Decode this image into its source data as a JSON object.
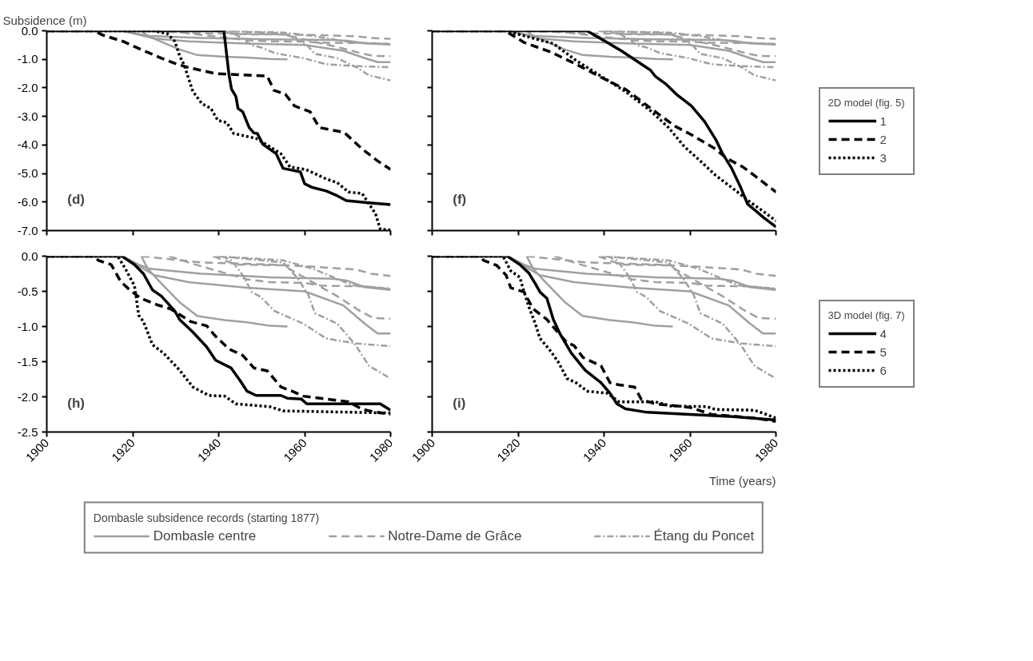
{
  "chart_data": [
    {
      "type": "line",
      "ylabel": "Subsidence (m)",
      "annotations": [
        "(d)"
      ],
      "xlim": [
        1900,
        1980
      ],
      "xticks": [
        1900,
        1920,
        1940,
        1960,
        1980
      ],
      "ylim": [
        -7,
        0
      ],
      "yticks": [
        {
          "value": 0,
          "label": "0.0"
        },
        {
          "value": -1,
          "label": "-1.0"
        },
        {
          "value": -2,
          "label": "-2.0"
        },
        {
          "value": -3,
          "label": "-3.0"
        },
        {
          "value": -4,
          "label": "-4.0"
        },
        {
          "value": -5,
          "label": "-5.0"
        },
        {
          "value": -6,
          "label": "-6.0"
        },
        {
          "value": -7,
          "label": "-7.0"
        }
      ],
      "tick_labels": "y",
      "series": [
        {
          "color": "#a0a0a0",
          "line_style": "solid",
          "x": [
            1922,
            1923.5,
            1926.7,
            1931,
            1935,
            1941.4,
            1946.6,
            1951.9,
            1956
          ],
          "values": [
            0,
            -0.18,
            -0.39,
            -0.66,
            -0.85,
            -0.91,
            -0.94,
            -0.99,
            -1.0
          ]
        },
        {
          "color": "#a0a0a0",
          "line_style": "solid",
          "x": [
            1917.5,
            1921.4,
            1924,
            1936,
            1952,
            1966.6,
            1970,
            1974,
            1980
          ],
          "values": [
            0,
            -0.12,
            -0.18,
            -0.25,
            -0.3,
            -0.32,
            -0.35,
            -0.44,
            -0.48
          ]
        },
        {
          "color": "#a0a0a0",
          "line_style": "solid",
          "x": [
            1917.5,
            1922,
            1925,
            1933,
            1946.6,
            1960,
            1969,
            1974,
            1977,
            1980
          ],
          "values": [
            0,
            -0.16,
            -0.27,
            -0.37,
            -0.45,
            -0.5,
            -0.7,
            -0.96,
            -1.1,
            -1.1
          ]
        },
        {
          "color": "#a0a0a0",
          "line_style": "dashed",
          "x": [
            1922,
            1936,
            1952,
            1962,
            1972,
            1975.5,
            1980
          ],
          "values": [
            0,
            -0.09,
            -0.12,
            -0.15,
            -0.19,
            -0.25,
            -0.28
          ]
        },
        {
          "color": "#a0a0a0",
          "line_style": "dashed",
          "x": [
            1928.5,
            1933.5,
            1941.4,
            1946.6,
            1952,
            1960,
            1964,
            1974,
            1980
          ],
          "values": [
            0,
            -0.1,
            -0.24,
            -0.33,
            -0.37,
            -0.38,
            -0.42,
            -0.43,
            -0.47
          ]
        },
        {
          "color": "#a0a0a0",
          "line_style": "dashed",
          "x": [
            1938.7,
            1944,
            1955,
            1962.4,
            1967.6,
            1972.9,
            1976,
            1980
          ],
          "values": [
            0,
            -0.12,
            -0.13,
            -0.39,
            -0.57,
            -0.78,
            -0.88,
            -0.89
          ]
        },
        {
          "color": "#a0a0a0",
          "line_style": "dashdot",
          "x": [
            1940.8,
            1943,
            1945.6,
            1947.7,
            1949.8,
            1953,
            1959.7,
            1965,
            1971.8,
            1980
          ],
          "values": [
            0,
            -0.06,
            -0.27,
            -0.51,
            -0.58,
            -0.78,
            -0.96,
            -1.17,
            -1.24,
            -1.28
          ]
        },
        {
          "color": "#a0a0a0",
          "line_style": "dashdot",
          "x": [
            1940.3,
            1955,
            1958.2,
            1960.8,
            1962.4,
            1967.6,
            1971.8,
            1975,
            1980
          ],
          "values": [
            0,
            -0.09,
            -0.3,
            -0.54,
            -0.81,
            -0.96,
            -1.26,
            -1.56,
            -1.74
          ]
        },
        {
          "color": "#a0a0a0",
          "line_style": "dashdot",
          "x": [
            1939.5,
            1955,
            1962,
            1969,
            1971.8,
            1980
          ],
          "values": [
            0,
            -0.06,
            -0.18,
            -0.36,
            -0.42,
            -0.46
          ]
        },
        {
          "color": "#000000",
          "line_style": "solid",
          "x": [
            1900,
            1941.2,
            1941.5,
            1942.4,
            1943,
            1944,
            1944.5,
            1945.6,
            1947.1,
            1948.2,
            1949,
            1950.3,
            1951.3,
            1953.4,
            1955,
            1959,
            1960,
            1961.8,
            1965,
            1967.6,
            1969.7,
            1975,
            1980
          ],
          "values": [
            0,
            0,
            -0.37,
            -1.54,
            -2.05,
            -2.3,
            -2.72,
            -2.84,
            -3.39,
            -3.58,
            -3.6,
            -3.98,
            -4.08,
            -4.31,
            -4.82,
            -4.94,
            -5.36,
            -5.49,
            -5.61,
            -5.78,
            -5.95,
            -6.03,
            -6.09
          ]
        },
        {
          "color": "#000000",
          "line_style": "dashed",
          "x": [
            1900,
            1911,
            1913,
            1917.7,
            1921.4,
            1926.7,
            1930.3,
            1933,
            1939.3,
            1951.3,
            1952.9,
            1955.5,
            1957.6,
            1961.3,
            1963.4,
            1969.2,
            1973.4,
            1977,
            1980
          ],
          "values": [
            0,
            0,
            -0.15,
            -0.37,
            -0.62,
            -0.96,
            -1.17,
            -1.29,
            -1.5,
            -1.59,
            -2.09,
            -2.22,
            -2.63,
            -2.84,
            -3.39,
            -3.56,
            -4.14,
            -4.56,
            -4.86
          ]
        },
        {
          "color": "#000000",
          "line_style": "dotted",
          "x": [
            1900,
            1925,
            1928,
            1929.8,
            1930.9,
            1932,
            1934,
            1936.1,
            1938.2,
            1939.8,
            1941.9,
            1943.5,
            1948.7,
            1951.9,
            1954.5,
            1956.6,
            1960.3,
            1965,
            1967.6,
            1970.2,
            1973.4,
            1975,
            1976.5,
            1977.6,
            1980
          ],
          "values": [
            0,
            0,
            -0.1,
            -0.37,
            -0.87,
            -1.21,
            -2.13,
            -2.55,
            -2.72,
            -3.14,
            -3.22,
            -3.6,
            -3.77,
            -4.06,
            -4.31,
            -4.77,
            -4.86,
            -5.19,
            -5.32,
            -5.65,
            -5.7,
            -6.07,
            -6.41,
            -6.95,
            -6.98
          ]
        }
      ]
    },
    {
      "type": "line",
      "annotations": [
        "(f)"
      ],
      "legend": "right",
      "legend_title": "2D model (fig. 5)",
      "xlim": [
        1900,
        1980
      ],
      "xticks": [
        1900,
        1920,
        1940,
        1960,
        1980
      ],
      "ylim": [
        -7,
        0
      ],
      "yticks": [
        0,
        -1,
        -2,
        -3,
        -4,
        -5,
        -6,
        -7
      ],
      "tick_labels": false,
      "series": [
        {
          "color": "#a0a0a0",
          "line_style": "solid",
          "x": [
            1922,
            1923.5,
            1926.7,
            1931,
            1935,
            1941.4,
            1946.6,
            1951.9,
            1956
          ],
          "values": [
            0,
            -0.18,
            -0.39,
            -0.66,
            -0.85,
            -0.91,
            -0.94,
            -0.99,
            -1.0
          ]
        },
        {
          "color": "#a0a0a0",
          "line_style": "solid",
          "x": [
            1917.5,
            1921.4,
            1924,
            1936,
            1952,
            1966.6,
            1970,
            1974,
            1980
          ],
          "values": [
            0,
            -0.12,
            -0.18,
            -0.25,
            -0.3,
            -0.32,
            -0.35,
            -0.44,
            -0.48
          ]
        },
        {
          "color": "#a0a0a0",
          "line_style": "solid",
          "x": [
            1917.5,
            1922,
            1925,
            1933,
            1946.6,
            1960,
            1969,
            1974,
            1977,
            1980
          ],
          "values": [
            0,
            -0.16,
            -0.27,
            -0.37,
            -0.45,
            -0.5,
            -0.7,
            -0.96,
            -1.1,
            -1.1
          ]
        },
        {
          "color": "#a0a0a0",
          "line_style": "dashed",
          "x": [
            1922,
            1936,
            1952,
            1962,
            1972,
            1975.5,
            1980
          ],
          "values": [
            0,
            -0.09,
            -0.12,
            -0.15,
            -0.19,
            -0.25,
            -0.28
          ]
        },
        {
          "color": "#a0a0a0",
          "line_style": "dashed",
          "x": [
            1928.5,
            1933.5,
            1941.4,
            1946.6,
            1952,
            1960,
            1964,
            1974,
            1980
          ],
          "values": [
            0,
            -0.1,
            -0.24,
            -0.33,
            -0.37,
            -0.38,
            -0.42,
            -0.43,
            -0.47
          ]
        },
        {
          "color": "#a0a0a0",
          "line_style": "dashed",
          "x": [
            1938.7,
            1944,
            1955,
            1962.4,
            1967.6,
            1972.9,
            1976,
            1980
          ],
          "values": [
            0,
            -0.12,
            -0.13,
            -0.39,
            -0.57,
            -0.78,
            -0.88,
            -0.89
          ]
        },
        {
          "color": "#a0a0a0",
          "line_style": "dashdot",
          "x": [
            1940.8,
            1943,
            1945.6,
            1947.7,
            1949.8,
            1953,
            1959.7,
            1965,
            1971.8,
            1980
          ],
          "values": [
            0,
            -0.06,
            -0.27,
            -0.51,
            -0.58,
            -0.78,
            -0.96,
            -1.17,
            -1.24,
            -1.28
          ]
        },
        {
          "color": "#a0a0a0",
          "line_style": "dashdot",
          "x": [
            1940.3,
            1955,
            1958.2,
            1960.8,
            1962.4,
            1967.6,
            1971.8,
            1975,
            1980
          ],
          "values": [
            0,
            -0.09,
            -0.3,
            -0.54,
            -0.81,
            -0.96,
            -1.26,
            -1.56,
            -1.74
          ]
        },
        {
          "color": "#a0a0a0",
          "line_style": "dashdot",
          "x": [
            1939.5,
            1955,
            1962,
            1969,
            1971.8,
            1980
          ],
          "values": [
            0,
            -0.06,
            -0.18,
            -0.36,
            -0.42,
            -0.46
          ]
        },
        {
          "name": "1",
          "color": "#000000",
          "line_style": "solid",
          "x": [
            1900,
            1936,
            1940.3,
            1944,
            1948.2,
            1950.8,
            1951.9,
            1954.5,
            1957.1,
            1960.3,
            1963.4,
            1966,
            1967.6,
            1969.7,
            1971.8,
            1973.4,
            1975.5,
            1977.1,
            1980
          ],
          "values": [
            0,
            0,
            -0.37,
            -0.7,
            -1.12,
            -1.38,
            -1.59,
            -1.88,
            -2.26,
            -2.63,
            -3.18,
            -3.81,
            -4.31,
            -4.82,
            -5.49,
            -6.07,
            -6.33,
            -6.54,
            -6.87
          ]
        },
        {
          "name": "2",
          "color": "#000000",
          "line_style": "dashed",
          "x": [
            1900,
            1917,
            1921.4,
            1927.7,
            1933.5,
            1939.3,
            1945,
            1948.7,
            1952.4,
            1956.6,
            1960.3,
            1965.5,
            1968.7,
            1972.3,
            1975,
            1980
          ],
          "values": [
            0,
            0,
            -0.41,
            -0.75,
            -1.17,
            -1.63,
            -2.05,
            -2.47,
            -2.89,
            -3.35,
            -3.64,
            -4.1,
            -4.48,
            -4.77,
            -5.07,
            -5.65
          ]
        },
        {
          "name": "3",
          "color": "#000000",
          "line_style": "dotted",
          "x": [
            1900,
            1917,
            1928.2,
            1933.5,
            1939.3,
            1945,
            1950.8,
            1955,
            1958.7,
            1962.4,
            1966,
            1969.7,
            1973.9,
            1977.1,
            1980
          ],
          "values": [
            0,
            0,
            -0.45,
            -1.04,
            -1.59,
            -2.13,
            -2.8,
            -3.39,
            -4.06,
            -4.56,
            -5.07,
            -5.49,
            -5.99,
            -6.33,
            -6.66
          ]
        }
      ]
    },
    {
      "type": "line",
      "annotations": [
        "(h)"
      ],
      "legend": "bottom",
      "legend_title": "Dombasle subsidence records (starting 1877)",
      "xlim": [
        1900,
        1980
      ],
      "xticks": [
        1900,
        1920,
        1940,
        1960,
        1980
      ],
      "ylim": [
        -2.5,
        0
      ],
      "yticks": [
        {
          "value": 0,
          "label": "0.0"
        },
        -0.5,
        {
          "value": -1,
          "label": "-1.0"
        },
        -1.5,
        {
          "value": -2,
          "label": "-2.0"
        },
        -2.5
      ],
      "series": [
        {
          "name": "Dombasle centre",
          "color": "#a0a0a0",
          "line_style": "solid",
          "x": [
            1922,
            1923.5,
            1926.7,
            1931,
            1935,
            1941.4,
            1946.6,
            1951.9,
            1956
          ],
          "values": [
            0,
            -0.18,
            -0.39,
            -0.66,
            -0.85,
            -0.91,
            -0.94,
            -0.99,
            -1.0
          ]
        },
        {
          "color": "#a0a0a0",
          "line_style": "solid",
          "x": [
            1917.5,
            1921.4,
            1924,
            1936,
            1952,
            1966.6,
            1970,
            1974,
            1980
          ],
          "values": [
            0,
            -0.12,
            -0.18,
            -0.25,
            -0.3,
            -0.32,
            -0.35,
            -0.44,
            -0.48
          ]
        },
        {
          "color": "#a0a0a0",
          "line_style": "solid",
          "x": [
            1917.5,
            1922,
            1925,
            1933,
            1946.6,
            1960,
            1969,
            1974,
            1977,
            1980
          ],
          "values": [
            0,
            -0.16,
            -0.27,
            -0.37,
            -0.45,
            -0.5,
            -0.7,
            -0.96,
            -1.1,
            -1.1
          ]
        },
        {
          "name": "Notre-Dame de Grâce",
          "color": "#a0a0a0",
          "line_style": "dashed",
          "x": [
            1922,
            1936,
            1952,
            1962,
            1972,
            1975.5,
            1980
          ],
          "values": [
            0,
            -0.09,
            -0.12,
            -0.15,
            -0.19,
            -0.25,
            -0.28
          ]
        },
        {
          "color": "#a0a0a0",
          "line_style": "dashed",
          "x": [
            1928.5,
            1933.5,
            1941.4,
            1946.6,
            1952,
            1960,
            1964,
            1974,
            1980
          ],
          "values": [
            0,
            -0.1,
            -0.24,
            -0.33,
            -0.37,
            -0.38,
            -0.42,
            -0.43,
            -0.47
          ]
        },
        {
          "color": "#a0a0a0",
          "line_style": "dashed",
          "x": [
            1938.7,
            1944,
            1955,
            1962.4,
            1967.6,
            1972.9,
            1976,
            1980
          ],
          "values": [
            0,
            -0.12,
            -0.13,
            -0.39,
            -0.57,
            -0.78,
            -0.88,
            -0.89
          ]
        },
        {
          "name": "Étang du Poncet",
          "color": "#a0a0a0",
          "line_style": "dashdot",
          "x": [
            1940.8,
            1943,
            1945.6,
            1947.7,
            1949.8,
            1953,
            1959.7,
            1965,
            1971.8,
            1980
          ],
          "values": [
            0,
            -0.06,
            -0.27,
            -0.51,
            -0.58,
            -0.78,
            -0.96,
            -1.17,
            -1.24,
            -1.28
          ]
        },
        {
          "color": "#a0a0a0",
          "line_style": "dashdot",
          "x": [
            1940.3,
            1955,
            1958.2,
            1960.8,
            1962.4,
            1967.6,
            1971.8,
            1975,
            1980
          ],
          "values": [
            0,
            -0.09,
            -0.3,
            -0.54,
            -0.81,
            -0.96,
            -1.26,
            -1.56,
            -1.74
          ]
        },
        {
          "color": "#a0a0a0",
          "line_style": "dashdot",
          "x": [
            1939.5,
            1955,
            1962,
            1969,
            1971.8,
            1980
          ],
          "values": [
            0,
            -0.06,
            -0.18,
            -0.36,
            -0.42,
            -0.46
          ]
        },
        {
          "color": "#000000",
          "line_style": "solid",
          "x": [
            1900,
            1917.5,
            1920.4,
            1922.5,
            1924.6,
            1926.7,
            1929.8,
            1930.9,
            1934,
            1937.2,
            1939.3,
            1942.9,
            1945,
            1946.6,
            1948.7,
            1954.5,
            1956,
            1959.2,
            1960.5,
            1977.6,
            1980
          ],
          "values": [
            0,
            0,
            -0.12,
            -0.25,
            -0.48,
            -0.57,
            -0.78,
            -0.9,
            -1.08,
            -1.29,
            -1.48,
            -1.59,
            -1.77,
            -1.92,
            -1.98,
            -1.98,
            -2.02,
            -2.03,
            -2.1,
            -2.1,
            -2.19
          ]
        },
        {
          "color": "#000000",
          "line_style": "dashed",
          "x": [
            1900,
            1911,
            1912,
            1915,
            1917.2,
            1919.3,
            1921.9,
            1925.6,
            1928.8,
            1933.5,
            1937.2,
            1939.3,
            1942.4,
            1945.6,
            1948.2,
            1951.3,
            1954.5,
            1957.1,
            1959.7,
            1970.2,
            1972.9,
            1975,
            1980
          ],
          "values": [
            0,
            0,
            -0.06,
            -0.12,
            -0.36,
            -0.48,
            -0.6,
            -0.69,
            -0.75,
            -0.93,
            -0.99,
            -1.14,
            -1.32,
            -1.41,
            -1.59,
            -1.63,
            -1.86,
            -1.92,
            -1.99,
            -2.07,
            -2.16,
            -2.2,
            -2.25
          ]
        },
        {
          "color": "#000000",
          "line_style": "dotted",
          "x": [
            1900,
            1916.5,
            1918.3,
            1920.4,
            1921.4,
            1922.5,
            1924.6,
            1927.2,
            1930.9,
            1934,
            1937.7,
            1941.4,
            1944,
            1951.9,
            1955,
            1980
          ],
          "values": [
            0,
            0,
            -0.18,
            -0.42,
            -0.84,
            -0.93,
            -1.26,
            -1.38,
            -1.62,
            -1.86,
            -1.98,
            -1.99,
            -2.1,
            -2.14,
            -2.2,
            -2.23
          ]
        }
      ]
    },
    {
      "type": "line",
      "annotations": [
        "(i)"
      ],
      "xlabel": "Time (years)",
      "legend": "right",
      "legend_title": "3D model (fig. 7)",
      "xlim": [
        1900,
        1980
      ],
      "xticks": [
        1900,
        1920,
        1940,
        1960,
        1980
      ],
      "ylim": [
        -2.5,
        0
      ],
      "yticks": [
        0,
        -0.5,
        -1,
        -1.5,
        -2,
        -2.5
      ],
      "tick_labels": "x",
      "series": [
        {
          "color": "#a0a0a0",
          "line_style": "solid",
          "x": [
            1922,
            1923.5,
            1926.7,
            1931,
            1935,
            1941.4,
            1946.6,
            1951.9,
            1956
          ],
          "values": [
            0,
            -0.18,
            -0.39,
            -0.66,
            -0.85,
            -0.91,
            -0.94,
            -0.99,
            -1.0
          ]
        },
        {
          "color": "#a0a0a0",
          "line_style": "solid",
          "x": [
            1917.5,
            1921.4,
            1924,
            1936,
            1952,
            1966.6,
            1970,
            1974,
            1980
          ],
          "values": [
            0,
            -0.12,
            -0.18,
            -0.25,
            -0.3,
            -0.32,
            -0.35,
            -0.44,
            -0.48
          ]
        },
        {
          "color": "#a0a0a0",
          "line_style": "solid",
          "x": [
            1917.5,
            1922,
            1925,
            1933,
            1946.6,
            1960,
            1969,
            1974,
            1977,
            1980
          ],
          "values": [
            0,
            -0.16,
            -0.27,
            -0.37,
            -0.45,
            -0.5,
            -0.7,
            -0.96,
            -1.1,
            -1.1
          ]
        },
        {
          "color": "#a0a0a0",
          "line_style": "dashed",
          "x": [
            1922,
            1936,
            1952,
            1962,
            1972,
            1975.5,
            1980
          ],
          "values": [
            0,
            -0.09,
            -0.12,
            -0.15,
            -0.19,
            -0.25,
            -0.28
          ]
        },
        {
          "color": "#a0a0a0",
          "line_style": "dashed",
          "x": [
            1928.5,
            1933.5,
            1941.4,
            1946.6,
            1952,
            1960,
            1964,
            1974,
            1980
          ],
          "values": [
            0,
            -0.1,
            -0.24,
            -0.33,
            -0.37,
            -0.38,
            -0.42,
            -0.43,
            -0.47
          ]
        },
        {
          "color": "#a0a0a0",
          "line_style": "dashed",
          "x": [
            1938.7,
            1944,
            1955,
            1962.4,
            1967.6,
            1972.9,
            1976,
            1980
          ],
          "values": [
            0,
            -0.12,
            -0.13,
            -0.39,
            -0.57,
            -0.78,
            -0.88,
            -0.89
          ]
        },
        {
          "color": "#a0a0a0",
          "line_style": "dashdot",
          "x": [
            1940.8,
            1943,
            1945.6,
            1947.7,
            1949.8,
            1953,
            1959.7,
            1965,
            1971.8,
            1980
          ],
          "values": [
            0,
            -0.06,
            -0.27,
            -0.51,
            -0.58,
            -0.78,
            -0.96,
            -1.17,
            -1.24,
            -1.28
          ]
        },
        {
          "color": "#a0a0a0",
          "line_style": "dashdot",
          "x": [
            1940.3,
            1955,
            1958.2,
            1960.8,
            1962.4,
            1967.6,
            1971.8,
            1975,
            1980
          ],
          "values": [
            0,
            -0.09,
            -0.3,
            -0.54,
            -0.81,
            -0.96,
            -1.26,
            -1.56,
            -1.74
          ]
        },
        {
          "color": "#a0a0a0",
          "line_style": "dashdot",
          "x": [
            1939.5,
            1955,
            1962,
            1969,
            1971.8,
            1980
          ],
          "values": [
            0,
            -0.06,
            -0.18,
            -0.36,
            -0.42,
            -0.46
          ]
        },
        {
          "name": "4",
          "color": "#000000",
          "line_style": "solid",
          "x": [
            1900,
            1917.5,
            1920.4,
            1922.5,
            1924,
            1925.1,
            1926.7,
            1928.2,
            1929.8,
            1932.4,
            1935.6,
            1939.3,
            1941.4,
            1943,
            1945,
            1950,
            1960,
            1970,
            1980
          ],
          "values": [
            0,
            0,
            -0.12,
            -0.24,
            -0.39,
            -0.51,
            -0.6,
            -0.9,
            -1.11,
            -1.38,
            -1.62,
            -1.8,
            -1.95,
            -2.1,
            -2.17,
            -2.22,
            -2.25,
            -2.28,
            -2.33
          ]
        },
        {
          "name": "5",
          "color": "#000000",
          "line_style": "dashed",
          "x": [
            1900,
            1911,
            1912,
            1915,
            1917.2,
            1918.3,
            1921.4,
            1923.5,
            1926.7,
            1928.8,
            1931.4,
            1933,
            1935.1,
            1939.3,
            1941.4,
            1943.5,
            1947.1,
            1948.7,
            1952,
            1960,
            1965,
            1975,
            1980
          ],
          "values": [
            0,
            0,
            -0.06,
            -0.13,
            -0.27,
            -0.45,
            -0.51,
            -0.75,
            -0.9,
            -1.05,
            -1.23,
            -1.27,
            -1.44,
            -1.56,
            -1.8,
            -1.83,
            -1.86,
            -2.04,
            -2.1,
            -2.15,
            -2.25,
            -2.3,
            -2.35
          ]
        },
        {
          "name": "6",
          "color": "#000000",
          "line_style": "dotted",
          "x": [
            1900,
            1916.5,
            1918.3,
            1920.4,
            1921.4,
            1922.5,
            1924,
            1925.1,
            1927.2,
            1929.3,
            1931.4,
            1933.5,
            1936.1,
            1940.8,
            1943.5,
            1951.9,
            1955.5,
            1963.9,
            1966,
            1975,
            1980
          ],
          "values": [
            0,
            0,
            -0.21,
            -0.3,
            -0.51,
            -0.72,
            -0.96,
            -1.17,
            -1.32,
            -1.5,
            -1.74,
            -1.8,
            -1.92,
            -1.95,
            -2.07,
            -2.07,
            -2.13,
            -2.14,
            -2.18,
            -2.19,
            -2.3
          ]
        }
      ]
    }
  ]
}
